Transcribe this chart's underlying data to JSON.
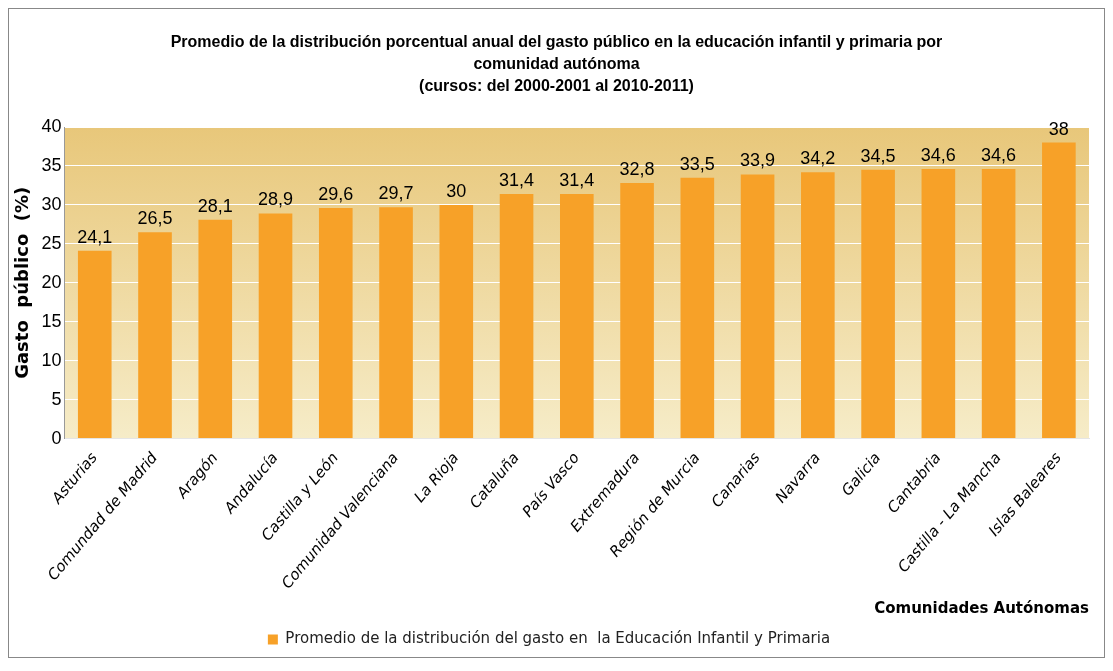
{
  "chart_data": {
    "type": "bar",
    "title": "Promedio de la distribución porcentual anual  del gasto público en  la  educación infantil y primaria por comunidad autónoma",
    "subtitle": "(cursos: del 2000-2001 al 2010-2011)",
    "xlabel": "Comunidades Autónomas",
    "ylabel": "Gasto  público  (%)",
    "categories": [
      "Asturias",
      "Comundad de Madrid",
      "Aragón",
      "Andalucía",
      "Castilla y León",
      "Comunidad Valenciana",
      "La Rioja",
      "Cataluña",
      "País Vasco",
      "Extremadura",
      "Región de Murcia",
      "Canarias",
      "Navarra",
      "Galicia",
      "Cantabria",
      "Castilla - La Mancha",
      "Islas Baleares"
    ],
    "series": [
      {
        "name": "Promedio de la distribución del gasto en  la Educación Infantil y Primaria",
        "color": "#f7a128",
        "values": [
          24.1,
          26.5,
          28.1,
          28.9,
          29.6,
          29.7,
          30,
          31.4,
          31.4,
          32.8,
          33.5,
          33.9,
          34.2,
          34.5,
          34.6,
          34.6,
          38
        ],
        "value_labels": [
          "24,1",
          "26,5",
          "28,1",
          "28,9",
          "29,6",
          "29,7",
          "30",
          "31,4",
          "31,4",
          "32,8",
          "33,5",
          "33,9",
          "34,2",
          "34,5",
          "34,6",
          "34,6",
          "38"
        ]
      }
    ],
    "ylim": [
      0,
      40
    ],
    "yticks": [
      0,
      5,
      10,
      15,
      20,
      25,
      30,
      35,
      40
    ],
    "grid": "y",
    "legend": "bottom"
  }
}
